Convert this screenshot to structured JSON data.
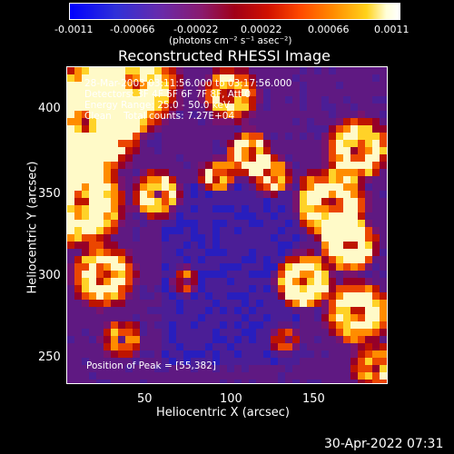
{
  "colorbar": {
    "tick_labels": [
      "-0.0011",
      "-0.00066",
      "-0.00022",
      "0.00022",
      "0.00066",
      "0.0011"
    ],
    "unit_label": "(photons cm⁻² s⁻¹ asec⁻²)"
  },
  "title": "Reconstructed RHESSI Image",
  "annotation": {
    "line1": "28-Mar-2003 03:11:56.000 to 03:17:56.000",
    "line2": "Detectors: 3F 4F 5F 6F 7F 8F, Att 0",
    "line3": "Energy Range: 25.0 - 50.0 keV",
    "line4": "Clean    Total counts: 7.27E+04",
    "peak": "Position of Peak = [55,382]"
  },
  "x_axis": {
    "label": "Heliocentric X (arcsec)",
    "ticks": [
      "50",
      "100",
      "150"
    ]
  },
  "y_axis": {
    "label": "Heliocentric Y (arcsec)",
    "ticks": [
      "400",
      "350",
      "300",
      "250"
    ]
  },
  "footer": {
    "timestamp": "30-Apr-2022 07:31"
  },
  "colors": {
    "background": "#000000",
    "foreground": "#ffffff"
  }
}
